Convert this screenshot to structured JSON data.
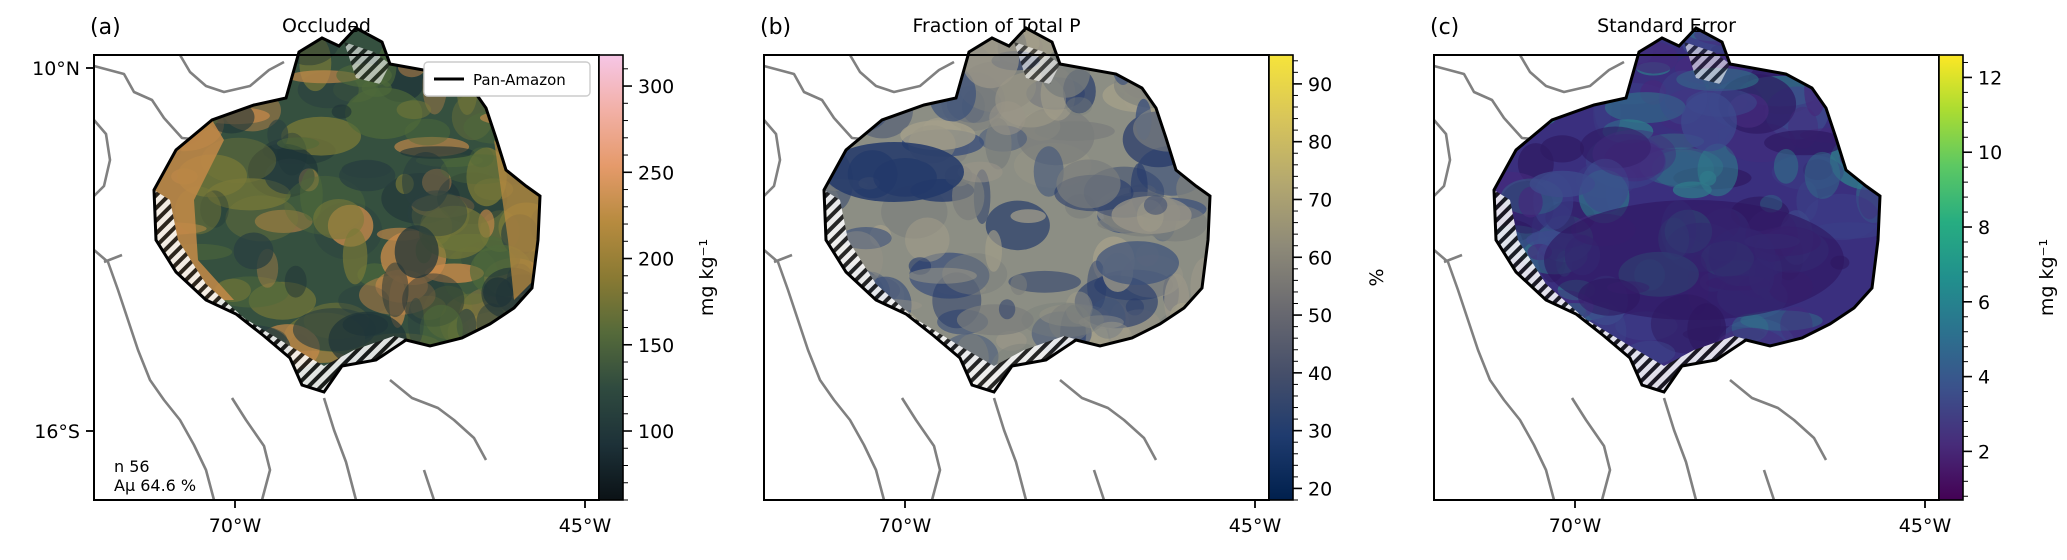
{
  "panels": [
    {
      "letter": "(a)",
      "title": "Occluded",
      "cbar_label": "mg kg⁻¹",
      "cbar_ticks": [
        "100",
        "150",
        "200",
        "250",
        "300"
      ],
      "cbar_range": [
        60,
        318
      ],
      "colormap": [
        "#0b1216",
        "#1d3138",
        "#2f4a3f",
        "#556a3a",
        "#8a7a33",
        "#b78b3f",
        "#e59a6a",
        "#f2b0a6",
        "#f6c6e6"
      ],
      "map_base": "#35503f",
      "map_patches": [
        "#1f3438",
        "#4f6a3a",
        "#2a4040",
        "#7a7a38",
        "#c98a4a"
      ],
      "legend_label": "Pan-Amazon",
      "stats": [
        "n 56",
        "Aμ 64.6 %"
      ],
      "lat_labels": [
        "10°N",
        "16°S"
      ],
      "lon_labels": [
        "70°W",
        "45°W"
      ]
    },
    {
      "letter": "(b)",
      "title": "Fraction of Total P",
      "cbar_label": "%",
      "cbar_ticks": [
        "20",
        "30",
        "40",
        "50",
        "60",
        "70",
        "80",
        "90"
      ],
      "cbar_range": [
        18,
        95
      ],
      "colormap": [
        "#00204d",
        "#1f3b6e",
        "#464f6a",
        "#6a6a70",
        "#8e8a78",
        "#b4a86f",
        "#d8c55a",
        "#f6e43a"
      ],
      "map_base": "#8c8e84",
      "map_patches": [
        "#23386a",
        "#7a7d7c",
        "#a5a08a",
        "#3a4f7a",
        "#9a9688"
      ],
      "lon_labels": [
        "70°W",
        "45°W"
      ]
    },
    {
      "letter": "(c)",
      "title": "Standard Error",
      "cbar_label": "mg kg⁻¹",
      "cbar_ticks": [
        "2",
        "4",
        "6",
        "8",
        "10",
        "12"
      ],
      "cbar_range": [
        0.7,
        12.6
      ],
      "colormap": [
        "#440154",
        "#472c7a",
        "#3b518b",
        "#2c718e",
        "#21908d",
        "#27ad81",
        "#5cc863",
        "#aadc32",
        "#fde725"
      ],
      "map_base": "#3a2f7e",
      "map_patches": [
        "#2f1a62",
        "#3d4a8c",
        "#2f7a8a",
        "#452a7c",
        "#3b3f87"
      ],
      "lon_labels": [
        "70°W",
        "45°W"
      ]
    }
  ]
}
